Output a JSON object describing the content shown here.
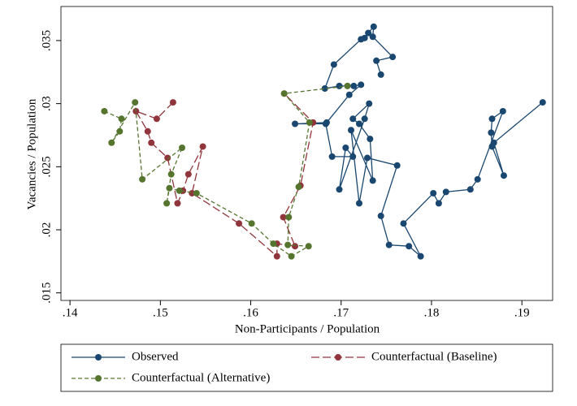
{
  "chart_data": {
    "type": "line",
    "x_label": "Non-Participants / Population",
    "y_label": "Vacancies / Population",
    "xlim": [
      0.139,
      0.1934
    ],
    "ylim": [
      0.0144,
      0.0377
    ],
    "xticks": [
      {
        "value": 0.14,
        "label": ".14"
      },
      {
        "value": 0.15,
        "label": ".15"
      },
      {
        "value": 0.16,
        "label": ".16"
      },
      {
        "value": 0.17,
        "label": ".17"
      },
      {
        "value": 0.18,
        "label": ".18"
      },
      {
        "value": 0.19,
        "label": ".19"
      }
    ],
    "yticks": [
      {
        "value": 0.015,
        "label": ".015"
      },
      {
        "value": 0.02,
        "label": ".02"
      },
      {
        "value": 0.025,
        "label": ".025"
      },
      {
        "value": 0.03,
        "label": ".03"
      },
      {
        "value": 0.035,
        "label": ".035"
      }
    ],
    "legend": "bottom",
    "series": [
      {
        "name": "Observed",
        "color": "#1a476f",
        "line_style": "solid",
        "x": [
          0.1923,
          0.1869,
          0.188,
          0.1867,
          0.1866,
          0.1867,
          0.1879,
          0.1851,
          0.1843,
          0.1816,
          0.1808,
          0.1802,
          0.1769,
          0.1788,
          0.1775,
          0.1753,
          0.1744,
          0.1762,
          0.1729,
          0.172,
          0.1711,
          0.1735,
          0.1732,
          0.172,
          0.1713,
          0.1731,
          0.1726,
          0.1698,
          0.1705,
          0.1713,
          0.169,
          0.1683,
          0.1649,
          0.1684,
          0.1709,
          0.1722,
          0.1714,
          0.1698,
          0.1682,
          0.1692,
          0.1722,
          0.1726,
          0.173,
          0.1736,
          0.1735,
          0.1757,
          0.1739,
          0.1744
        ],
        "values": [
          0.0301,
          0.0269,
          0.0243,
          0.0266,
          0.0277,
          0.0288,
          0.0294,
          0.024,
          0.0232,
          0.023,
          0.0221,
          0.0229,
          0.0205,
          0.0179,
          0.0187,
          0.0188,
          0.0211,
          0.0251,
          0.0257,
          0.0221,
          0.0279,
          0.0239,
          0.0272,
          0.0284,
          0.0288,
          0.03,
          0.0288,
          0.0232,
          0.0265,
          0.0258,
          0.0258,
          0.0284,
          0.0284,
          0.0285,
          0.0307,
          0.0315,
          0.0314,
          0.0314,
          0.0312,
          0.0331,
          0.0351,
          0.0352,
          0.0356,
          0.0361,
          0.0353,
          0.0337,
          0.0334,
          0.0323
        ]
      },
      {
        "name": "Counterfactual (Baseline)",
        "color": "#90353b",
        "line_style": "longdash",
        "x": [
          0.1514,
          0.1496,
          0.1473,
          0.1486,
          0.149,
          0.1508,
          0.1519,
          0.1525,
          0.1531,
          0.1547,
          0.1535,
          0.1587,
          0.1629,
          0.1629,
          0.1649,
          0.1636,
          0.1655,
          0.1669,
          0.1637
        ],
        "values": [
          0.0301,
          0.0288,
          0.0294,
          0.0278,
          0.0269,
          0.0257,
          0.0221,
          0.0231,
          0.0244,
          0.0266,
          0.0229,
          0.0205,
          0.0179,
          0.0189,
          0.0187,
          0.021,
          0.0235,
          0.0285,
          0.0308
        ]
      },
      {
        "name": "Counterfactual (Alternative)",
        "color": "#55752f",
        "line_style": "dash",
        "x": [
          0.1438,
          0.1457,
          0.1455,
          0.1446,
          0.1472,
          0.148,
          0.1524,
          0.1512,
          0.1507,
          0.151,
          0.1521,
          0.154,
          0.1601,
          0.1625,
          0.1645,
          0.1664,
          0.1641,
          0.1642,
          0.1653,
          0.1665,
          0.1637,
          0.1707
        ],
        "values": [
          0.0294,
          0.0288,
          0.0278,
          0.0269,
          0.0301,
          0.024,
          0.0265,
          0.0244,
          0.0221,
          0.0233,
          0.0231,
          0.0229,
          0.0205,
          0.0189,
          0.0179,
          0.0187,
          0.0188,
          0.021,
          0.0234,
          0.0285,
          0.0308,
          0.0314
        ]
      }
    ]
  }
}
